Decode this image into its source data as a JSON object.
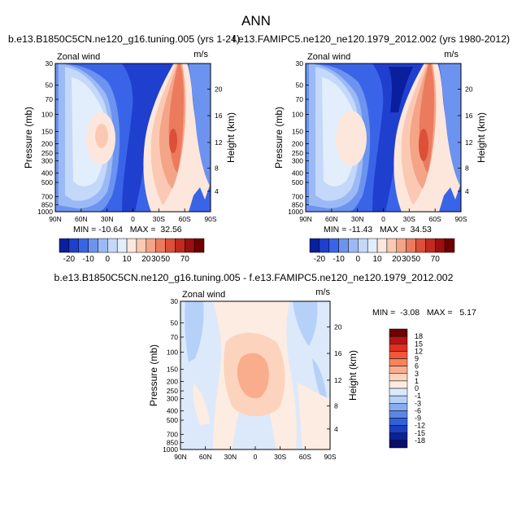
{
  "figure": {
    "title": "ANN",
    "left_case": "b.e13.B1850C5CN.ne120_g16.tuning.005 (yrs 1-24)",
    "right_case": "f.e13.FAMIPC5.ne120_ne120.1979_2012.002 (yrs 1980-2012)",
    "diff_title": "b.e13.B1850C5CN.ne120_g16.tuning.005 - f.e13.FAMIPC5.ne120_ne120.1979_2012.002"
  },
  "chart_data": [
    {
      "id": "panel_left",
      "type": "heatmap",
      "variable": "Zonal wind",
      "units": "m/s",
      "xlabel": "",
      "ylabel": "Pressure (mb)",
      "y2label": "Height (km)",
      "x_ticks": [
        "90N",
        "60N",
        "30N",
        "0",
        "30S",
        "60S",
        "90S"
      ],
      "x_values": [
        90,
        60,
        30,
        0,
        -30,
        -60,
        -90
      ],
      "y_ticks": [
        "30",
        "50",
        "70",
        "100",
        "150",
        "200",
        "250",
        "300",
        "400",
        "500",
        "700",
        "850",
        "1000"
      ],
      "y_values": [
        30,
        50,
        70,
        100,
        150,
        200,
        250,
        300,
        400,
        500,
        700,
        850,
        1000
      ],
      "y2_ticks": [
        "4",
        "8",
        "12",
        "16",
        "20"
      ],
      "ylim": [
        30,
        1000
      ],
      "stats": "MIN = -10.64   MAX =  32.56",
      "min": -10.64,
      "max": 32.56
    },
    {
      "id": "panel_right",
      "type": "heatmap",
      "variable": "Zonal wind",
      "units": "m/s",
      "xlabel": "",
      "ylabel": "Pressure (mb)",
      "y2label": "Height (km)",
      "x_ticks": [
        "90N",
        "60N",
        "30N",
        "0",
        "30S",
        "60S",
        "90S"
      ],
      "x_values": [
        90,
        60,
        30,
        0,
        -30,
        -60,
        -90
      ],
      "y_ticks": [
        "30",
        "50",
        "70",
        "100",
        "150",
        "200",
        "250",
        "300",
        "400",
        "500",
        "700",
        "850",
        "1000"
      ],
      "y_values": [
        30,
        50,
        70,
        100,
        150,
        200,
        250,
        300,
        400,
        500,
        700,
        850,
        1000
      ],
      "y2_ticks": [
        "4",
        "8",
        "12",
        "16",
        "20"
      ],
      "ylim": [
        30,
        1000
      ],
      "stats": "MIN = -11.43   MAX =  34.53",
      "min": -11.43,
      "max": 34.53
    },
    {
      "id": "panel_diff",
      "type": "heatmap",
      "variable": "Zonal wind",
      "units": "m/s",
      "xlabel": "",
      "ylabel": "Pressure (mb)",
      "y2label": "Height (km)",
      "x_ticks": [
        "90N",
        "60N",
        "30N",
        "0",
        "30S",
        "60S",
        "90S"
      ],
      "x_values": [
        90,
        60,
        30,
        0,
        -30,
        -60,
        -90
      ],
      "y_ticks": [
        "30",
        "50",
        "70",
        "100",
        "150",
        "200",
        "250",
        "300",
        "400",
        "500",
        "700",
        "850",
        "1000"
      ],
      "y_values": [
        30,
        50,
        70,
        100,
        150,
        200,
        250,
        300,
        400,
        500,
        700,
        850,
        1000
      ],
      "y2_ticks": [
        "4",
        "8",
        "12",
        "16",
        "20"
      ],
      "ylim": [
        30,
        1000
      ],
      "stats": "MIN =  -3.08   MAX =   5.17",
      "min": -3.08,
      "max": 5.17
    }
  ],
  "colorbars": {
    "main": {
      "labels": [
        "-20",
        "-10",
        "0",
        "10",
        "20",
        "30",
        "50",
        "70"
      ],
      "colors": [
        "#0a1f9e",
        "#1f3fcf",
        "#3a64e8",
        "#6c93f0",
        "#9bbaf5",
        "#c4d8f9",
        "#e3eefc",
        "#fde7dc",
        "#fbc9b3",
        "#f4a487",
        "#ec7a5c",
        "#dc5038",
        "#c22a1d",
        "#9c0f0f",
        "#6e0000"
      ]
    },
    "diff": {
      "labels": [
        "18",
        "15",
        "12",
        "9",
        "6",
        "3",
        "1",
        "0",
        "-1",
        "-3",
        "-6",
        "-9",
        "-12",
        "-15",
        "-18"
      ],
      "colors": [
        "#6e0000",
        "#b3151a",
        "#e0301f",
        "#f0583a",
        "#f7845e",
        "#f9ad8c",
        "#fcd3bd",
        "#fdece1",
        "#dce9fb",
        "#b6d1f7",
        "#86acf0",
        "#5b86e6",
        "#3360d8",
        "#1b3fbf",
        "#0a2296",
        "#060f6b"
      ]
    }
  }
}
